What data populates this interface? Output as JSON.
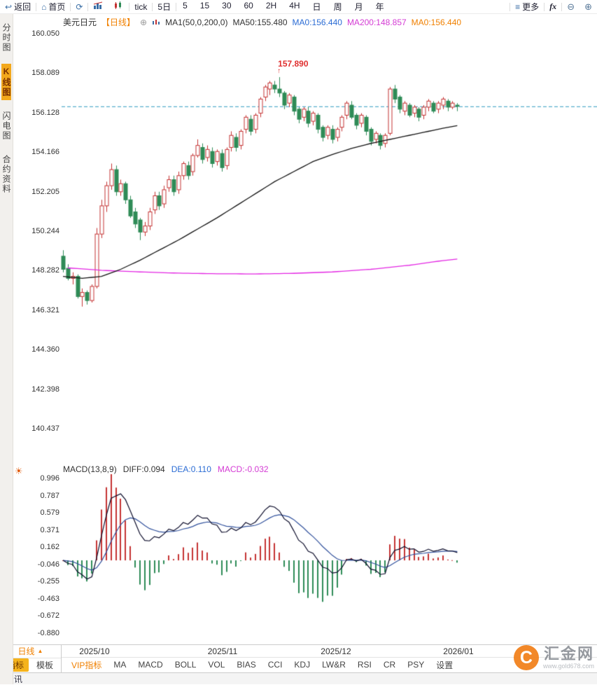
{
  "toolbar": {
    "back": "返回",
    "home": "首页",
    "tick": "tick",
    "five_day": "5日",
    "periods": [
      "5",
      "15",
      "30",
      "60",
      "2H",
      "4H",
      "日",
      "周",
      "月",
      "年"
    ],
    "more": "更多",
    "fx": "fx"
  },
  "sidebar": {
    "items": [
      {
        "label": "分时图",
        "active": false
      },
      {
        "label": "K线图",
        "active": true
      },
      {
        "label": "闪电图",
        "active": false
      },
      {
        "label": "合约资料",
        "active": false
      }
    ]
  },
  "price_header": {
    "symbol": "美元日元",
    "period_tag": "【日线】",
    "ma_settings": "MA1(50,0,200,0)",
    "ma50": "MA50:155.480",
    "ma0_blue": "MA0:156.440",
    "ma200": "MA200:148.857",
    "ma0_orange": "MA0:156.440"
  },
  "macd_header": {
    "title": "MACD(13,8,9)",
    "diff": "DIFF:0.094",
    "dea": "DEA:0.110",
    "macd": "MACD:-0.032"
  },
  "bottom_bar": {
    "period_selector": "日线",
    "period_arrow": "▲",
    "tab_indicator": "指标",
    "tab_template": "模板",
    "vip": "VIP指标",
    "indicators": [
      "MA",
      "MACD",
      "BOLL",
      "VOL",
      "BIAS",
      "CCI",
      "KDJ",
      "LW&R",
      "RSI",
      "CR",
      "PSY"
    ],
    "settings": "设置",
    "news": "资讯"
  },
  "watermark": {
    "brand": "汇金网",
    "url": "www.gold678.com",
    "logo_letter": "C"
  },
  "colors": {
    "up": "#c43232",
    "down": "#2e8b57",
    "ma50": "#141414",
    "ma200": "#e326e3",
    "diff_line": "#0c0c2a",
    "dea_line": "#31519c",
    "hist_up": "#c43232",
    "hist_down": "#2e8b57",
    "current_line": "#2e9bc0",
    "accent": "#f08000",
    "peak": "#e03030"
  },
  "chart_data": {
    "type": "candlestick",
    "symbol": "美元日元",
    "interval": "日线",
    "price_axis": [
      "160.050",
      "158.089",
      "156.128",
      "154.166",
      "152.205",
      "150.244",
      "148.282",
      "146.321",
      "144.360",
      "142.398",
      "140.437"
    ],
    "macd_axis": [
      "0.996",
      "0.787",
      "0.579",
      "0.371",
      "0.162",
      "-0.046",
      "-0.255",
      "-0.463",
      "-0.672",
      "-0.880"
    ],
    "x_axis": [
      "2025/10",
      "2025/11",
      "2025/12",
      "2026/01"
    ],
    "current_price": 156.44,
    "peak_label": "157.890",
    "peak_index": 45,
    "peak_price": 157.89,
    "macd_params": [
      13,
      8,
      9
    ],
    "macd_last": {
      "diff": 0.094,
      "dea": 0.11,
      "macd": -0.032
    },
    "ma50_points": [
      [
        0,
        148.0
      ],
      [
        4,
        147.9
      ],
      [
        8,
        148.0
      ],
      [
        12,
        148.35
      ],
      [
        16,
        148.8
      ],
      [
        20,
        149.3
      ],
      [
        24,
        149.8
      ],
      [
        28,
        150.35
      ],
      [
        32,
        150.9
      ],
      [
        36,
        151.5
      ],
      [
        40,
        152.1
      ],
      [
        44,
        152.7
      ],
      [
        48,
        153.2
      ],
      [
        52,
        153.7
      ],
      [
        56,
        154.05
      ],
      [
        60,
        154.35
      ],
      [
        64,
        154.6
      ],
      [
        68,
        154.8
      ],
      [
        72,
        155.0
      ],
      [
        76,
        155.2
      ],
      [
        79,
        155.35
      ],
      [
        82,
        155.48
      ]
    ],
    "ma200_points": [
      [
        1,
        148.42
      ],
      [
        8,
        148.3
      ],
      [
        16,
        148.22
      ],
      [
        24,
        148.16
      ],
      [
        32,
        148.13
      ],
      [
        40,
        148.12
      ],
      [
        48,
        148.15
      ],
      [
        56,
        148.22
      ],
      [
        64,
        148.35
      ],
      [
        72,
        148.55
      ],
      [
        78,
        148.75
      ],
      [
        82,
        148.86
      ]
    ],
    "candles": [
      [
        149.0,
        149.3,
        148.2,
        148.35
      ],
      [
        148.4,
        148.6,
        147.8,
        147.9
      ],
      [
        147.9,
        148.2,
        147.6,
        148.0
      ],
      [
        148.0,
        148.1,
        146.9,
        147.0
      ],
      [
        147.0,
        147.4,
        146.5,
        147.2
      ],
      [
        147.2,
        147.3,
        146.6,
        146.8
      ],
      [
        146.8,
        147.6,
        146.7,
        147.5
      ],
      [
        147.5,
        150.4,
        147.4,
        150.1
      ],
      [
        150.1,
        151.8,
        149.9,
        151.5
      ],
      [
        151.5,
        152.7,
        151.2,
        152.5
      ],
      [
        152.5,
        153.6,
        152.3,
        153.3
      ],
      [
        153.3,
        153.5,
        152.0,
        152.2
      ],
      [
        152.2,
        152.8,
        152.0,
        152.6
      ],
      [
        152.6,
        152.7,
        151.6,
        151.8
      ],
      [
        151.8,
        152.0,
        150.9,
        151.0
      ],
      [
        151.2,
        151.4,
        150.4,
        150.6
      ],
      [
        150.8,
        150.9,
        149.8,
        150.2
      ],
      [
        150.2,
        150.7,
        150.0,
        150.5
      ],
      [
        150.5,
        151.4,
        150.3,
        151.2
      ],
      [
        151.3,
        152.2,
        151.1,
        152.0
      ],
      [
        152.0,
        152.2,
        151.3,
        151.5
      ],
      [
        151.6,
        152.5,
        151.4,
        152.3
      ],
      [
        152.4,
        153.0,
        152.2,
        152.8
      ],
      [
        152.8,
        153.0,
        152.0,
        152.2
      ],
      [
        152.3,
        153.2,
        152.1,
        153.0
      ],
      [
        153.0,
        153.7,
        152.8,
        153.6
      ],
      [
        153.5,
        153.7,
        152.8,
        153.0
      ],
      [
        153.2,
        154.1,
        153.0,
        154.0
      ],
      [
        154.0,
        154.8,
        153.9,
        154.5
      ],
      [
        154.4,
        154.6,
        153.6,
        153.8
      ],
      [
        153.9,
        154.5,
        153.7,
        154.3
      ],
      [
        154.2,
        154.4,
        153.4,
        153.6
      ],
      [
        153.7,
        154.3,
        153.5,
        154.2
      ],
      [
        154.1,
        154.3,
        153.2,
        153.4
      ],
      [
        153.5,
        154.4,
        153.3,
        154.3
      ],
      [
        154.4,
        155.2,
        154.2,
        155.0
      ],
      [
        154.9,
        155.1,
        154.2,
        154.4
      ],
      [
        154.5,
        155.3,
        154.3,
        155.2
      ],
      [
        155.3,
        156.0,
        155.1,
        155.9
      ],
      [
        155.8,
        156.0,
        155.0,
        155.2
      ],
      [
        155.3,
        156.1,
        155.1,
        156.0
      ],
      [
        156.1,
        156.9,
        155.9,
        156.8
      ],
      [
        156.9,
        157.5,
        156.7,
        157.4
      ],
      [
        157.3,
        157.7,
        157.0,
        157.6
      ],
      [
        157.5,
        157.7,
        157.1,
        157.3
      ],
      [
        157.3,
        157.89,
        156.9,
        157.1
      ],
      [
        157.1,
        157.2,
        156.3,
        156.5
      ],
      [
        156.6,
        157.1,
        156.4,
        157.0
      ],
      [
        156.9,
        157.0,
        156.0,
        156.2
      ],
      [
        156.3,
        156.4,
        155.6,
        155.8
      ],
      [
        155.9,
        156.4,
        155.7,
        156.3
      ],
      [
        156.2,
        156.4,
        155.4,
        155.6
      ],
      [
        155.7,
        156.2,
        155.5,
        156.1
      ],
      [
        156.0,
        156.1,
        155.1,
        155.3
      ],
      [
        155.4,
        155.5,
        154.7,
        154.9
      ],
      [
        155.0,
        155.5,
        154.8,
        155.4
      ],
      [
        155.3,
        155.5,
        154.6,
        154.8
      ],
      [
        154.9,
        155.4,
        154.7,
        155.3
      ],
      [
        155.4,
        156.0,
        155.2,
        155.9
      ],
      [
        156.0,
        156.7,
        155.8,
        156.6
      ],
      [
        156.5,
        156.7,
        155.8,
        155.9
      ],
      [
        156.0,
        156.1,
        155.3,
        155.5
      ],
      [
        155.6,
        156.1,
        155.4,
        156.0
      ],
      [
        155.9,
        156.0,
        155.0,
        155.2
      ],
      [
        155.3,
        155.4,
        154.5,
        154.7
      ],
      [
        154.8,
        155.2,
        154.6,
        155.1
      ],
      [
        155.0,
        155.1,
        154.3,
        154.5
      ],
      [
        154.6,
        155.1,
        154.4,
        155.0
      ],
      [
        155.1,
        157.4,
        155.0,
        157.3
      ],
      [
        157.3,
        157.5,
        156.6,
        156.8
      ],
      [
        156.9,
        157.0,
        156.1,
        156.3
      ],
      [
        156.2,
        156.7,
        156.0,
        156.6
      ],
      [
        156.5,
        156.6,
        155.9,
        156.0
      ],
      [
        156.1,
        156.5,
        155.9,
        156.4
      ],
      [
        156.3,
        156.4,
        155.7,
        155.9
      ],
      [
        156.0,
        156.5,
        155.8,
        156.4
      ],
      [
        156.4,
        156.8,
        156.2,
        156.7
      ],
      [
        156.6,
        156.7,
        156.1,
        156.2
      ],
      [
        156.3,
        156.7,
        156.1,
        156.6
      ],
      [
        156.5,
        156.9,
        156.3,
        156.8
      ],
      [
        156.7,
        156.8,
        156.2,
        156.4
      ],
      [
        156.4,
        156.7,
        156.3,
        156.6
      ],
      [
        156.5,
        156.6,
        156.2,
        156.44
      ]
    ]
  }
}
